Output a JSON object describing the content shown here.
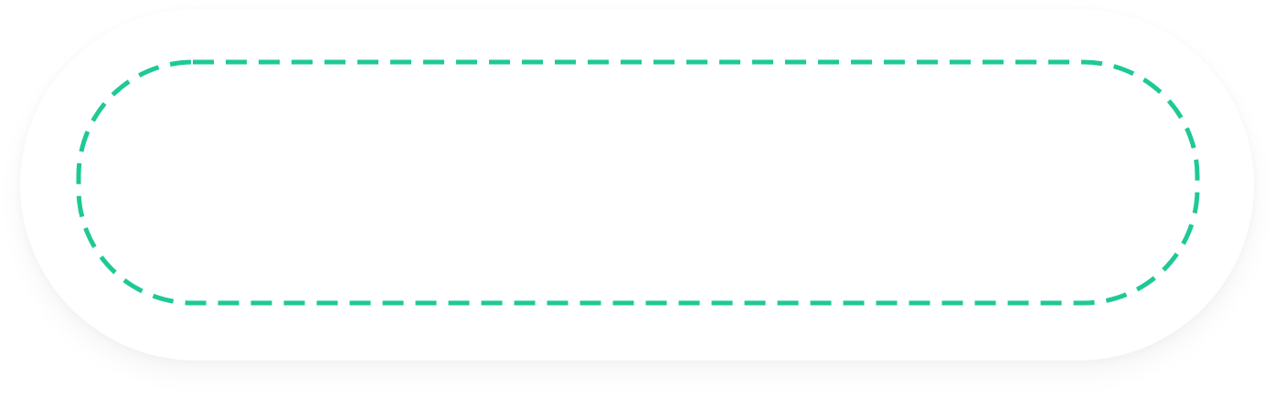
{
  "dropzone": {
    "label": "",
    "accent_color": "#1ec996",
    "surface_color": "#ffffff"
  }
}
